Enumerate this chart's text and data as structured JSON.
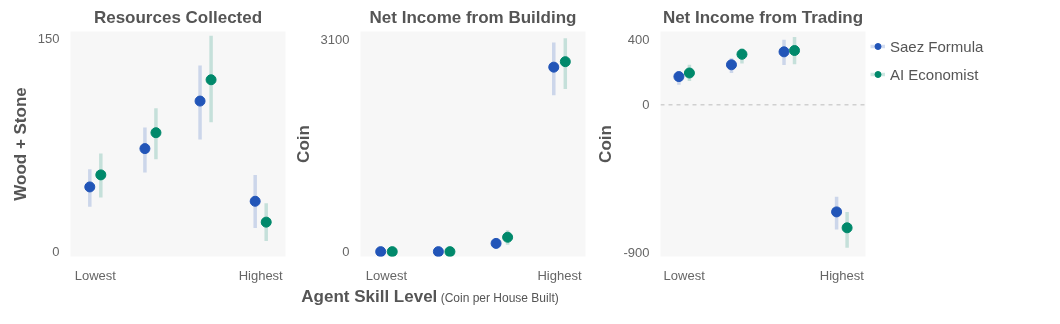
{
  "chart_data": [
    {
      "type": "scatter",
      "title": "Resources Collected",
      "ylabel": "Wood + Stone",
      "categories": [
        "Lowest",
        null,
        null,
        "Highest"
      ],
      "ylim": [
        -3.5,
        155
      ],
      "yticks": [
        0,
        150
      ],
      "grid": false,
      "marker": "circle",
      "series": [
        {
          "color": "#2255b8",
          "values": [
            45.5,
            72.5,
            106,
            35.4
          ],
          "errors": [
            [
              31.5,
              58
            ],
            [
              55.7,
              87.4
            ],
            [
              79,
              131
            ],
            [
              16.6,
              54
            ]
          ]
        },
        {
          "color": "#00896b",
          "values": [
            54,
            83.7,
            121,
            20.7
          ],
          "errors": [
            [
              38,
              69
            ],
            [
              65,
              101
            ],
            [
              91,
              152
            ],
            [
              7.4,
              34
            ]
          ]
        }
      ]
    },
    {
      "type": "scatter",
      "title": "Net Income from Building",
      "ylabel": "Coin",
      "xlabel": "Agent Skill Level",
      "annotations": [
        "(Coin per House Built)"
      ],
      "categories": [
        "Lowest",
        null,
        null,
        "Highest"
      ],
      "ylim": [
        -71,
        3210
      ],
      "yticks": [
        0,
        3100
      ],
      "grid": false,
      "marker": "circle",
      "series": [
        {
          "color": "#2255b8",
          "values": [
            0,
            0,
            120,
            2690
          ],
          "errors": [
            null,
            null,
            null,
            [
              2280,
              3050
            ]
          ]
        },
        {
          "color": "#00896b",
          "values": [
            0,
            0,
            210,
            2770
          ],
          "errors": [
            null,
            null,
            [
              100,
              310
            ],
            [
              2370,
              3110
            ]
          ]
        }
      ]
    },
    {
      "type": "scatter",
      "title": "Net Income from Trading",
      "ylabel": "Coin",
      "categories": [
        "Lowest",
        null,
        null,
        "Highest"
      ],
      "ylim": [
        -926,
        446
      ],
      "yticks": [
        -900,
        0,
        400
      ],
      "grid": false,
      "marker": "circle",
      "legend": "right",
      "ref_lines": [
        {
          "axis": "y",
          "value": 0,
          "color": "#d0d0d0",
          "line_style": "dashed"
        }
      ],
      "series": [
        {
          "name": "Saez Formula",
          "color": "#2255b8",
          "values": [
            171,
            243,
            322,
            -654
          ],
          "errors": [
            [
              122,
              201
            ],
            [
              193,
              283
            ],
            [
              241,
              396
            ],
            [
              -761,
              -562
            ]
          ]
        },
        {
          "name": "AI Economist",
          "color": "#00896b",
          "values": [
            193,
            307,
            330,
            -751
          ],
          "errors": [
            [
              144,
              243
            ],
            [
              251,
              346
            ],
            [
              247,
              412
            ],
            [
              -872,
              -654
            ]
          ]
        }
      ]
    }
  ]
}
